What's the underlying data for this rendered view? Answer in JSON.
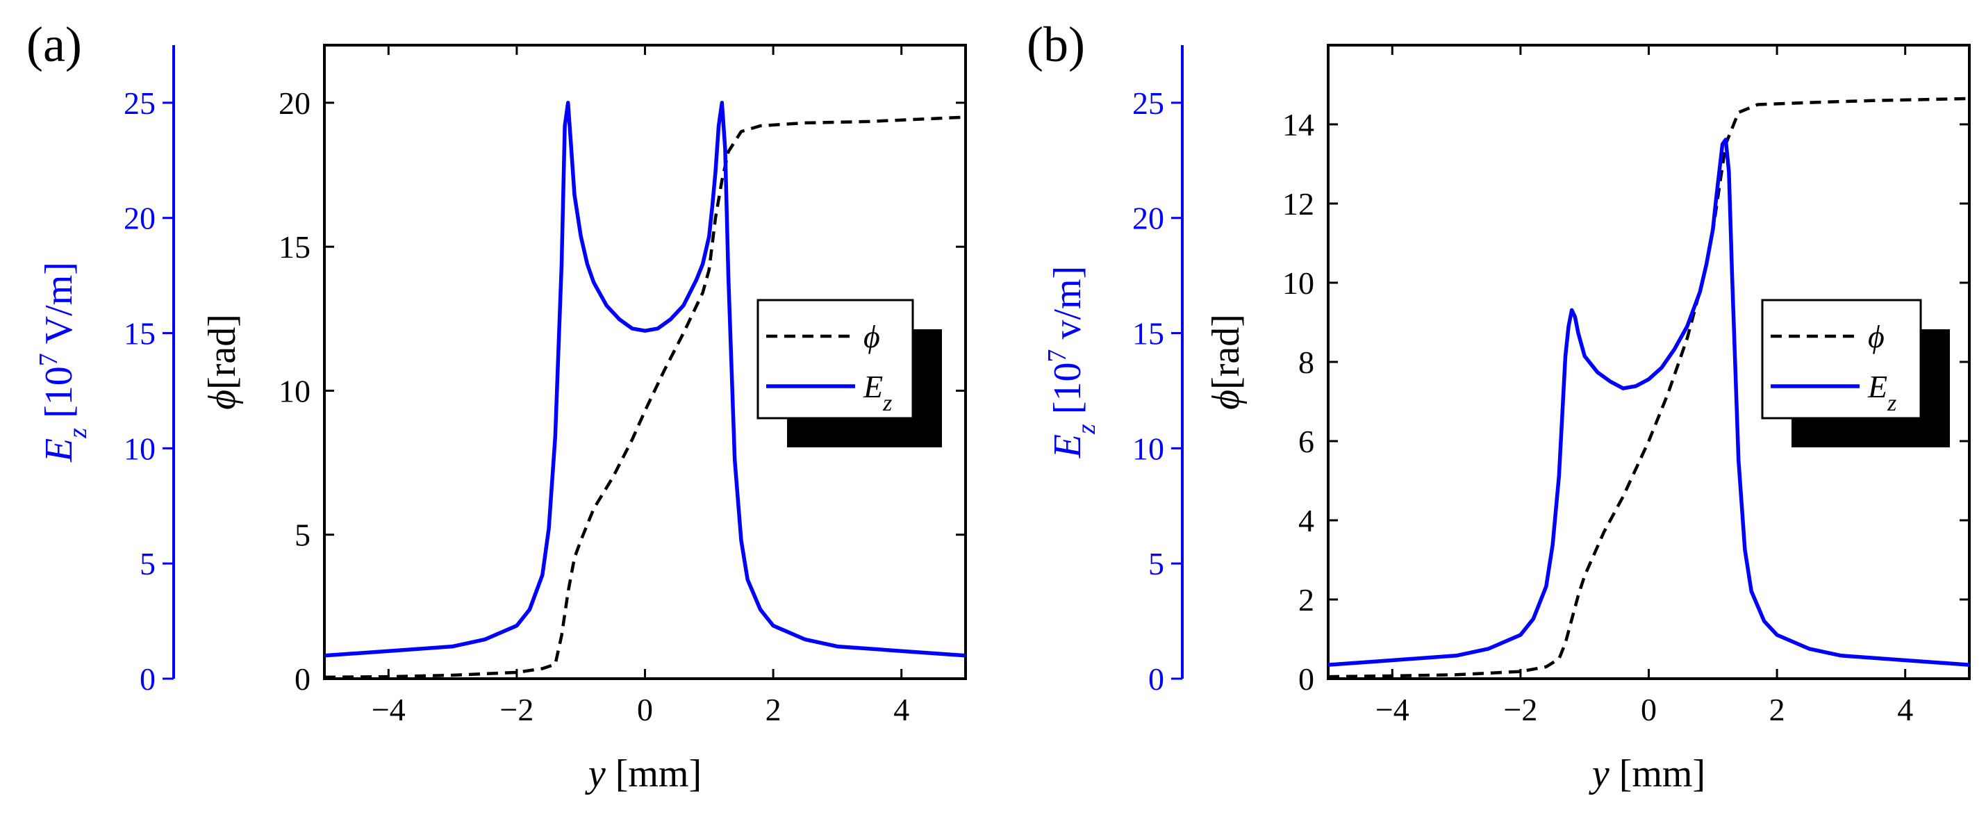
{
  "chart_data": [
    {
      "panel_label": "(a)",
      "type": "line",
      "xlabel": {
        "var": "y",
        "unit": "[mm]"
      },
      "xlim": [
        -5,
        5
      ],
      "x_ticks": [
        -4,
        -2,
        0,
        2,
        4
      ],
      "y_left": {
        "label": {
          "var": "E",
          "sub": "z",
          "rest": "[10",
          "sup": "7",
          "end": " V/m]"
        },
        "lim": [
          0,
          27.5
        ],
        "ticks": [
          0,
          5,
          10,
          15,
          20,
          25
        ],
        "color": "#0000ff"
      },
      "y_right": {
        "label": {
          "var": "ϕ",
          "unit": "[rad]"
        },
        "lim": [
          0,
          22
        ],
        "ticks": [
          0,
          5,
          10,
          15,
          20
        ],
        "color": "#000000"
      },
      "legend": {
        "position": "center-right",
        "entries": [
          {
            "var": "ϕ",
            "sub": ""
          },
          {
            "var": "E",
            "sub": "z"
          }
        ]
      },
      "series": [
        {
          "name": "ϕ",
          "axis": "right",
          "style": "dashed",
          "color": "#000000",
          "x": [
            -5,
            -4,
            -3,
            -2,
            -1.6,
            -1.4,
            -1.3,
            -1.2,
            -1.1,
            -1.0,
            -0.8,
            -0.5,
            -0.2,
            0,
            0.3,
            0.6,
            0.9,
            1.0,
            1.1,
            1.2,
            1.3,
            1.5,
            1.8,
            2.5,
            3.5,
            5
          ],
          "values": [
            0.05,
            0.07,
            0.12,
            0.22,
            0.35,
            0.5,
            1.5,
            3.0,
            4.2,
            4.8,
            5.9,
            7.0,
            8.3,
            9.3,
            10.7,
            12.0,
            13.4,
            14.2,
            16.0,
            17.3,
            18.3,
            19.0,
            19.2,
            19.3,
            19.35,
            19.5
          ]
        },
        {
          "name": "E_z",
          "axis": "left",
          "style": "solid",
          "color": "#0000ff",
          "x": [
            -5,
            -4,
            -3,
            -2.5,
            -2,
            -1.8,
            -1.6,
            -1.5,
            -1.4,
            -1.3,
            -1.25,
            -1.2,
            -1.15,
            -1.1,
            -1.0,
            -0.9,
            -0.8,
            -0.6,
            -0.4,
            -0.2,
            0,
            0.2,
            0.4,
            0.6,
            0.8,
            0.9,
            1.0,
            1.05,
            1.1,
            1.15,
            1.2,
            1.25,
            1.3,
            1.4,
            1.5,
            1.6,
            1.8,
            2.0,
            2.5,
            3,
            4,
            5
          ],
          "values": [
            1.0,
            1.2,
            1.4,
            1.7,
            2.3,
            3.0,
            4.5,
            6.5,
            10.5,
            18.0,
            24.0,
            25.0,
            23.0,
            21.0,
            19.2,
            18.0,
            17.2,
            16.2,
            15.6,
            15.2,
            15.1,
            15.2,
            15.6,
            16.2,
            17.3,
            18.0,
            19.2,
            20.5,
            22.0,
            24.0,
            25.0,
            23.0,
            17.5,
            9.5,
            6.0,
            4.3,
            3.0,
            2.3,
            1.7,
            1.4,
            1.2,
            1.0
          ]
        }
      ]
    },
    {
      "panel_label": "(b)",
      "type": "line",
      "xlabel": {
        "var": "y",
        "unit": "[mm]"
      },
      "xlim": [
        -5,
        5
      ],
      "x_ticks": [
        -4,
        -2,
        0,
        2,
        4
      ],
      "y_left": {
        "label": {
          "var": "E",
          "sub": "z",
          "rest": "[10",
          "sup": "7",
          "end": " v/m]"
        },
        "lim": [
          0,
          27.5
        ],
        "ticks": [
          0,
          5,
          10,
          15,
          20,
          25
        ],
        "color": "#0000ff"
      },
      "y_right": {
        "label": {
          "var": "ϕ",
          "unit": "[rad]"
        },
        "lim": [
          0,
          16
        ],
        "ticks": [
          0,
          2,
          4,
          6,
          8,
          10,
          12,
          14
        ],
        "color": "#000000"
      },
      "legend": {
        "position": "center-right",
        "entries": [
          {
            "var": "ϕ",
            "sub": ""
          },
          {
            "var": "E",
            "sub": "z"
          }
        ]
      },
      "series": [
        {
          "name": "ϕ",
          "axis": "right",
          "style": "dashed",
          "color": "#000000",
          "x": [
            -5,
            -4,
            -3,
            -2,
            -1.6,
            -1.4,
            -1.3,
            -1.2,
            -1.1,
            -1.0,
            -0.7,
            -0.4,
            -0.2,
            0,
            0.3,
            0.6,
            0.8,
            0.9,
            1.0,
            1.1,
            1.2,
            1.4,
            1.7,
            2.5,
            3.5,
            5
          ],
          "values": [
            0.05,
            0.07,
            0.1,
            0.18,
            0.3,
            0.5,
            0.9,
            1.5,
            2.1,
            2.6,
            3.7,
            4.6,
            5.3,
            6.0,
            7.2,
            8.6,
            9.8,
            10.5,
            11.3,
            12.4,
            13.5,
            14.3,
            14.5,
            14.55,
            14.6,
            14.65
          ]
        },
        {
          "name": "E_z",
          "axis": "left",
          "style": "solid",
          "color": "#0000ff",
          "x": [
            -5,
            -4,
            -3,
            -2.5,
            -2,
            -1.8,
            -1.6,
            -1.5,
            -1.4,
            -1.3,
            -1.25,
            -1.2,
            -1.15,
            -1.1,
            -1.0,
            -0.8,
            -0.6,
            -0.4,
            -0.2,
            0,
            0.2,
            0.4,
            0.6,
            0.8,
            0.9,
            1.0,
            1.05,
            1.1,
            1.15,
            1.2,
            1.25,
            1.3,
            1.4,
            1.5,
            1.6,
            1.8,
            2.0,
            2.5,
            3,
            4,
            5
          ],
          "values": [
            0.6,
            0.8,
            1.0,
            1.3,
            1.9,
            2.6,
            4.0,
            5.8,
            8.8,
            14.0,
            15.3,
            16.0,
            15.7,
            15.0,
            14.0,
            13.3,
            12.9,
            12.6,
            12.7,
            13.0,
            13.5,
            14.3,
            15.3,
            16.8,
            18.0,
            19.5,
            20.8,
            22.0,
            23.2,
            23.4,
            22.0,
            17.5,
            9.5,
            5.6,
            3.8,
            2.5,
            1.9,
            1.3,
            1.0,
            0.8,
            0.6
          ]
        }
      ]
    }
  ]
}
